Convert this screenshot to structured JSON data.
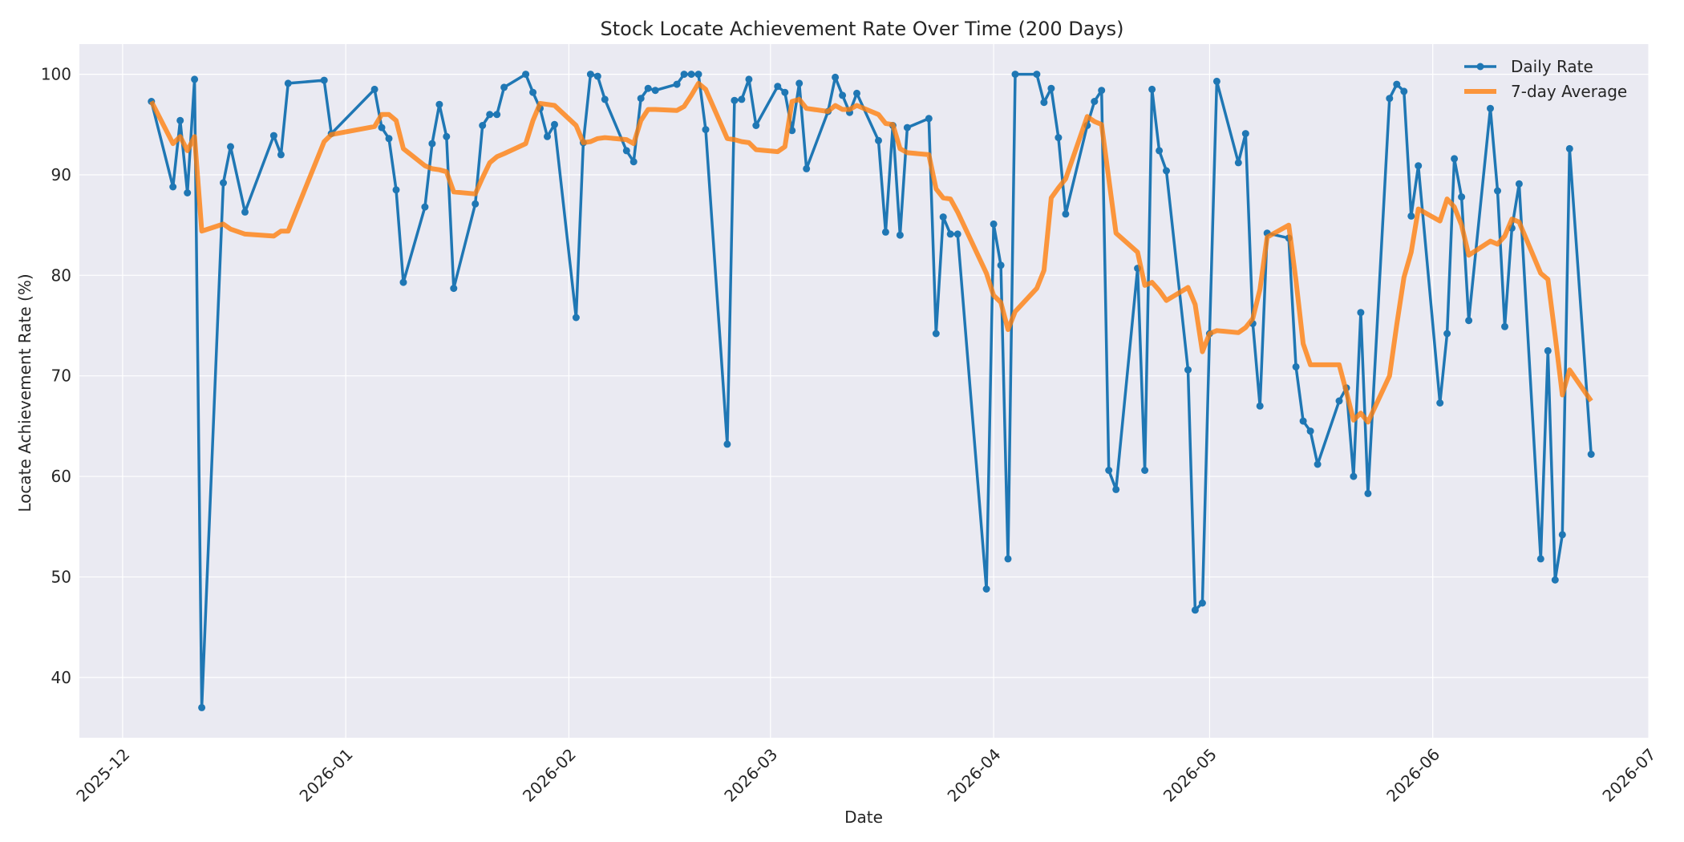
{
  "chart_data": {
    "type": "line",
    "title": "Stock Locate Achievement Rate Over Time (200 Days)",
    "xlabel": "Date",
    "ylabel": "Locate Achievement Rate (%)",
    "x_tick_labels": [
      "2025-12",
      "2026-01",
      "2026-02",
      "2026-03",
      "2026-04",
      "2026-05",
      "2026-06",
      "2026-07"
    ],
    "x_tick_dates": [
      "2025-12-01",
      "2026-01-01",
      "2026-02-01",
      "2026-03-01",
      "2026-04-01",
      "2026-05-01",
      "2026-06-01",
      "2026-07-01"
    ],
    "y_ticks": [
      40,
      50,
      60,
      70,
      80,
      90,
      100
    ],
    "xlim": [
      "2025-11-25",
      "2026-07-01"
    ],
    "ylim": [
      34,
      103
    ],
    "grid": true,
    "legend_position": "top-right",
    "colors": {
      "daily": "#1f77b4",
      "avg": "#ff7f0e",
      "background": "#eaeaf2"
    },
    "series": [
      {
        "name": "Daily Rate",
        "style": "line-markers",
        "points": [
          [
            "2025-12-05",
            97.3
          ],
          [
            "2025-12-08",
            88.8
          ],
          [
            "2025-12-09",
            95.4
          ],
          [
            "2025-12-10",
            88.2
          ],
          [
            "2025-12-11",
            99.5
          ],
          [
            "2025-12-12",
            37.0
          ],
          [
            "2025-12-15",
            89.2
          ],
          [
            "2025-12-16",
            92.8
          ],
          [
            "2025-12-18",
            86.3
          ],
          [
            "2025-12-22",
            93.9
          ],
          [
            "2025-12-23",
            92.0
          ],
          [
            "2025-12-24",
            99.1
          ],
          [
            "2025-12-29",
            99.4
          ],
          [
            "2025-12-30",
            94.1
          ],
          [
            "2026-01-05",
            98.5
          ],
          [
            "2026-01-06",
            94.7
          ],
          [
            "2026-01-07",
            93.6
          ],
          [
            "2026-01-08",
            88.5
          ],
          [
            "2026-01-09",
            79.3
          ],
          [
            "2026-01-12",
            86.8
          ],
          [
            "2026-01-13",
            93.1
          ],
          [
            "2026-01-14",
            97.0
          ],
          [
            "2026-01-15",
            93.8
          ],
          [
            "2026-01-16",
            78.7
          ],
          [
            "2026-01-19",
            87.1
          ],
          [
            "2026-01-20",
            94.9
          ],
          [
            "2026-01-21",
            96.0
          ],
          [
            "2026-01-22",
            96.0
          ],
          [
            "2026-01-23",
            98.7
          ],
          [
            "2026-01-26",
            100.0
          ],
          [
            "2026-01-27",
            98.2
          ],
          [
            "2026-01-28",
            96.6
          ],
          [
            "2026-01-29",
            93.8
          ],
          [
            "2026-01-30",
            95.0
          ],
          [
            "2026-02-02",
            75.8
          ],
          [
            "2026-02-03",
            93.2
          ],
          [
            "2026-02-04",
            100.0
          ],
          [
            "2026-02-05",
            99.8
          ],
          [
            "2026-02-06",
            97.5
          ],
          [
            "2026-02-09",
            92.4
          ],
          [
            "2026-02-10",
            91.3
          ],
          [
            "2026-02-11",
            97.6
          ],
          [
            "2026-02-12",
            98.6
          ],
          [
            "2026-02-13",
            98.4
          ],
          [
            "2026-02-16",
            99.0
          ],
          [
            "2026-02-17",
            100.0
          ],
          [
            "2026-02-18",
            100.0
          ],
          [
            "2026-02-19",
            100.0
          ],
          [
            "2026-02-20",
            94.5
          ],
          [
            "2026-02-23",
            63.2
          ],
          [
            "2026-02-24",
            97.4
          ],
          [
            "2026-02-25",
            97.5
          ],
          [
            "2026-02-26",
            99.5
          ],
          [
            "2026-02-27",
            94.9
          ],
          [
            "2026-03-02",
            98.8
          ],
          [
            "2026-03-03",
            98.2
          ],
          [
            "2026-03-04",
            94.4
          ],
          [
            "2026-03-05",
            99.1
          ],
          [
            "2026-03-06",
            90.6
          ],
          [
            "2026-03-09",
            96.3
          ],
          [
            "2026-03-10",
            99.7
          ],
          [
            "2026-03-11",
            97.9
          ],
          [
            "2026-03-12",
            96.2
          ],
          [
            "2026-03-13",
            98.1
          ],
          [
            "2026-03-16",
            93.4
          ],
          [
            "2026-03-17",
            84.3
          ],
          [
            "2026-03-18",
            94.9
          ],
          [
            "2026-03-19",
            84.0
          ],
          [
            "2026-03-20",
            94.7
          ],
          [
            "2026-03-23",
            95.6
          ],
          [
            "2026-03-24",
            74.2
          ],
          [
            "2026-03-25",
            85.8
          ],
          [
            "2026-03-26",
            84.1
          ],
          [
            "2026-03-27",
            84.1
          ],
          [
            "2026-03-31",
            48.8
          ],
          [
            "2026-04-01",
            85.1
          ],
          [
            "2026-04-02",
            81.0
          ],
          [
            "2026-04-03",
            51.8
          ],
          [
            "2026-04-04",
            100.0
          ],
          [
            "2026-04-07",
            100.0
          ],
          [
            "2026-04-08",
            97.2
          ],
          [
            "2026-04-09",
            98.6
          ],
          [
            "2026-04-10",
            93.7
          ],
          [
            "2026-04-11",
            86.1
          ],
          [
            "2026-04-14",
            94.9
          ],
          [
            "2026-04-15",
            97.3
          ],
          [
            "2026-04-16",
            98.4
          ],
          [
            "2026-04-17",
            60.6
          ],
          [
            "2026-04-18",
            58.7
          ],
          [
            "2026-04-21",
            80.7
          ],
          [
            "2026-04-22",
            60.6
          ],
          [
            "2026-04-23",
            98.5
          ],
          [
            "2026-04-24",
            92.4
          ],
          [
            "2026-04-25",
            90.4
          ],
          [
            "2026-04-28",
            70.6
          ],
          [
            "2026-04-29",
            46.7
          ],
          [
            "2026-04-30",
            47.4
          ],
          [
            "2026-05-01",
            74.2
          ],
          [
            "2026-05-02",
            99.3
          ],
          [
            "2026-05-05",
            91.2
          ],
          [
            "2026-05-06",
            94.1
          ],
          [
            "2026-05-07",
            75.2
          ],
          [
            "2026-05-08",
            67.0
          ],
          [
            "2026-05-09",
            84.2
          ],
          [
            "2026-05-12",
            83.7
          ],
          [
            "2026-05-13",
            70.9
          ],
          [
            "2026-05-14",
            65.5
          ],
          [
            "2026-05-15",
            64.5
          ],
          [
            "2026-05-16",
            61.2
          ],
          [
            "2026-05-19",
            67.5
          ],
          [
            "2026-05-20",
            68.8
          ],
          [
            "2026-05-21",
            60.0
          ],
          [
            "2026-05-22",
            76.3
          ],
          [
            "2026-05-23",
            58.3
          ],
          [
            "2026-05-26",
            97.6
          ],
          [
            "2026-05-27",
            99.0
          ],
          [
            "2026-05-28",
            98.3
          ],
          [
            "2026-05-29",
            85.9
          ],
          [
            "2026-05-30",
            90.9
          ],
          [
            "2026-06-02",
            67.3
          ],
          [
            "2026-06-03",
            74.2
          ],
          [
            "2026-06-04",
            91.6
          ],
          [
            "2026-06-05",
            87.8
          ],
          [
            "2026-06-06",
            75.5
          ],
          [
            "2026-06-09",
            96.6
          ],
          [
            "2026-06-10",
            88.4
          ],
          [
            "2026-06-11",
            74.9
          ],
          [
            "2026-06-12",
            84.7
          ],
          [
            "2026-06-13",
            89.1
          ],
          [
            "2026-06-16",
            51.8
          ],
          [
            "2026-06-17",
            72.5
          ],
          [
            "2026-06-18",
            49.7
          ],
          [
            "2026-06-19",
            54.2
          ],
          [
            "2026-06-20",
            92.6
          ],
          [
            "2026-06-23",
            62.2
          ]
        ]
      },
      {
        "name": "7-day Average",
        "style": "line",
        "points": [
          [
            "2025-12-05",
            97.3
          ],
          [
            "2025-12-08",
            93.1
          ],
          [
            "2025-12-09",
            93.8
          ],
          [
            "2025-12-10",
            92.4
          ],
          [
            "2025-12-11",
            93.8
          ],
          [
            "2025-12-12",
            84.4
          ],
          [
            "2025-12-15",
            85.1
          ],
          [
            "2025-12-16",
            84.6
          ],
          [
            "2025-12-18",
            84.1
          ],
          [
            "2025-12-22",
            83.9
          ],
          [
            "2025-12-23",
            84.4
          ],
          [
            "2025-12-24",
            84.4
          ],
          [
            "2025-12-29",
            93.3
          ],
          [
            "2025-12-30",
            94.0
          ],
          [
            "2026-01-05",
            94.8
          ],
          [
            "2026-01-06",
            96.0
          ],
          [
            "2026-01-07",
            96.0
          ],
          [
            "2026-01-08",
            95.4
          ],
          [
            "2026-01-09",
            92.6
          ],
          [
            "2026-01-12",
            90.9
          ],
          [
            "2026-01-13",
            90.6
          ],
          [
            "2026-01-14",
            90.5
          ],
          [
            "2026-01-15",
            90.3
          ],
          [
            "2026-01-16",
            88.3
          ],
          [
            "2026-01-19",
            88.1
          ],
          [
            "2026-01-20",
            89.7
          ],
          [
            "2026-01-21",
            91.2
          ],
          [
            "2026-01-22",
            91.8
          ],
          [
            "2026-01-23",
            92.1
          ],
          [
            "2026-01-26",
            93.1
          ],
          [
            "2026-01-27",
            95.4
          ],
          [
            "2026-01-28",
            97.1
          ],
          [
            "2026-01-29",
            97.0
          ],
          [
            "2026-01-30",
            96.9
          ],
          [
            "2026-02-02",
            94.9
          ],
          [
            "2026-02-03",
            93.2
          ],
          [
            "2026-02-04",
            93.3
          ],
          [
            "2026-02-05",
            93.6
          ],
          [
            "2026-02-06",
            93.7
          ],
          [
            "2026-02-09",
            93.5
          ],
          [
            "2026-02-10",
            93.1
          ],
          [
            "2026-02-11",
            95.4
          ],
          [
            "2026-02-12",
            96.5
          ],
          [
            "2026-02-13",
            96.5
          ],
          [
            "2026-02-16",
            96.4
          ],
          [
            "2026-02-17",
            96.8
          ],
          [
            "2026-02-18",
            97.9
          ],
          [
            "2026-02-19",
            99.1
          ],
          [
            "2026-02-20",
            98.5
          ],
          [
            "2026-02-23",
            93.6
          ],
          [
            "2026-02-24",
            93.5
          ],
          [
            "2026-02-25",
            93.3
          ],
          [
            "2026-02-26",
            93.2
          ],
          [
            "2026-02-27",
            92.5
          ],
          [
            "2026-03-02",
            92.3
          ],
          [
            "2026-03-03",
            92.8
          ],
          [
            "2026-03-04",
            97.3
          ],
          [
            "2026-03-05",
            97.5
          ],
          [
            "2026-03-06",
            96.6
          ],
          [
            "2026-03-09",
            96.3
          ],
          [
            "2026-03-10",
            96.9
          ],
          [
            "2026-03-11",
            96.5
          ],
          [
            "2026-03-12",
            96.5
          ],
          [
            "2026-03-13",
            96.9
          ],
          [
            "2026-03-16",
            96.0
          ],
          [
            "2026-03-17",
            95.1
          ],
          [
            "2026-03-18",
            95.0
          ],
          [
            "2026-03-19",
            92.6
          ],
          [
            "2026-03-20",
            92.2
          ],
          [
            "2026-03-23",
            92.0
          ],
          [
            "2026-03-24",
            88.6
          ],
          [
            "2026-03-25",
            87.7
          ],
          [
            "2026-03-26",
            87.6
          ],
          [
            "2026-03-27",
            86.3
          ],
          [
            "2026-03-31",
            80.2
          ],
          [
            "2026-04-01",
            78.0
          ],
          [
            "2026-04-02",
            77.3
          ],
          [
            "2026-04-03",
            74.6
          ],
          [
            "2026-04-04",
            76.4
          ],
          [
            "2026-04-07",
            78.7
          ],
          [
            "2026-04-08",
            80.5
          ],
          [
            "2026-04-09",
            87.7
          ],
          [
            "2026-04-10",
            88.7
          ],
          [
            "2026-04-11",
            89.6
          ],
          [
            "2026-04-14",
            95.8
          ],
          [
            "2026-04-15",
            95.3
          ],
          [
            "2026-04-16",
            95.0
          ],
          [
            "2026-04-17",
            89.6
          ],
          [
            "2026-04-18",
            84.2
          ],
          [
            "2026-04-21",
            82.3
          ],
          [
            "2026-04-22",
            79.0
          ],
          [
            "2026-04-23",
            79.3
          ],
          [
            "2026-04-24",
            78.5
          ],
          [
            "2026-04-25",
            77.5
          ],
          [
            "2026-04-28",
            78.8
          ],
          [
            "2026-04-29",
            77.1
          ],
          [
            "2026-04-30",
            72.4
          ],
          [
            "2026-05-01",
            74.2
          ],
          [
            "2026-05-02",
            74.5
          ],
          [
            "2026-05-05",
            74.3
          ],
          [
            "2026-05-06",
            74.8
          ],
          [
            "2026-05-07",
            75.7
          ],
          [
            "2026-05-08",
            78.6
          ],
          [
            "2026-05-09",
            83.8
          ],
          [
            "2026-05-12",
            85.0
          ],
          [
            "2026-05-13",
            79.5
          ],
          [
            "2026-05-14",
            73.2
          ],
          [
            "2026-05-15",
            71.1
          ],
          [
            "2026-05-16",
            71.1
          ],
          [
            "2026-05-19",
            71.1
          ],
          [
            "2026-05-20",
            68.4
          ],
          [
            "2026-05-21",
            65.6
          ],
          [
            "2026-05-22",
            66.3
          ],
          [
            "2026-05-23",
            65.4
          ],
          [
            "2026-05-26",
            70.0
          ],
          [
            "2026-05-27",
            75.1
          ],
          [
            "2026-05-28",
            79.8
          ],
          [
            "2026-05-29",
            82.3
          ],
          [
            "2026-05-30",
            86.6
          ],
          [
            "2026-06-02",
            85.4
          ],
          [
            "2026-06-03",
            87.6
          ],
          [
            "2026-06-04",
            86.8
          ],
          [
            "2026-06-05",
            85.0
          ],
          [
            "2026-06-06",
            82.0
          ],
          [
            "2026-06-09",
            83.4
          ],
          [
            "2026-06-10",
            83.1
          ],
          [
            "2026-06-11",
            83.9
          ],
          [
            "2026-06-12",
            85.6
          ],
          [
            "2026-06-13",
            85.3
          ],
          [
            "2026-06-16",
            80.2
          ],
          [
            "2026-06-17",
            79.6
          ],
          [
            "2026-06-18",
            74.0
          ],
          [
            "2026-06-19",
            68.1
          ],
          [
            "2026-06-20",
            70.6
          ],
          [
            "2026-06-23",
            67.5
          ]
        ]
      }
    ]
  }
}
